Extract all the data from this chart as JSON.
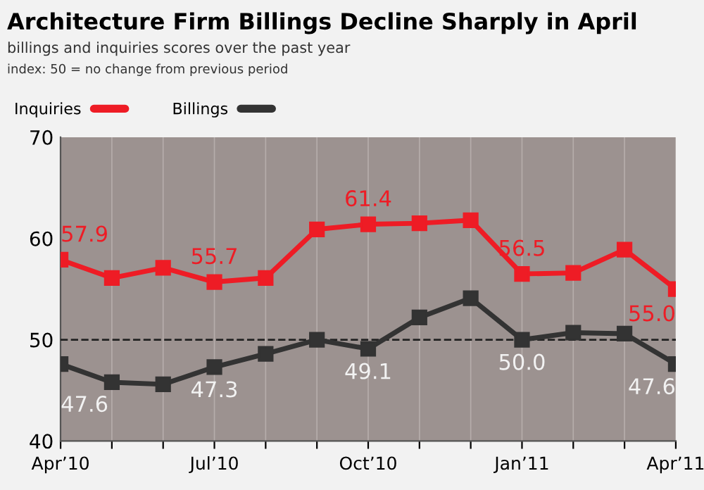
{
  "chart_data": {
    "type": "line",
    "title": "Architecture Firm Billings Decline Sharply in April",
    "subtitle": "billings and inquiries scores over the past year",
    "annotations": [
      "index: 50 = no change from previous period"
    ],
    "categories": [
      "Apr’10",
      null,
      null,
      "Jul’10",
      null,
      null,
      "Oct’10",
      null,
      null,
      "Jan’11",
      null,
      null,
      "Apr’11"
    ],
    "series": [
      {
        "name": "Inquiries",
        "color": "#ee1c25",
        "values": [
          57.9,
          56.1,
          57.1,
          55.7,
          56.1,
          60.9,
          61.4,
          61.5,
          61.8,
          56.5,
          56.6,
          58.9,
          55.0
        ],
        "value_labels": [
          "57.9",
          null,
          null,
          "55.7",
          null,
          null,
          "61.4",
          null,
          null,
          "56.5",
          null,
          null,
          "55.0"
        ]
      },
      {
        "name": "Billings",
        "color": "#333333",
        "values": [
          47.6,
          45.8,
          45.6,
          47.3,
          48.6,
          50.0,
          49.1,
          52.2,
          54.1,
          50.0,
          50.7,
          50.6,
          47.6
        ],
        "value_labels": [
          "47.6",
          null,
          null,
          "47.3",
          null,
          null,
          "49.1",
          null,
          null,
          "50.0",
          null,
          null,
          "47.6"
        ]
      }
    ],
    "ylim": [
      40,
      70
    ],
    "yticks": [
      40,
      50,
      60,
      70
    ],
    "grid": "x",
    "legend": "top left",
    "marker": "square",
    "line_style": "solid",
    "ref_lines": [
      {
        "axis": "y",
        "value": 50,
        "label": null,
        "color": "#222222",
        "line_style": "dashed"
      }
    ]
  }
}
